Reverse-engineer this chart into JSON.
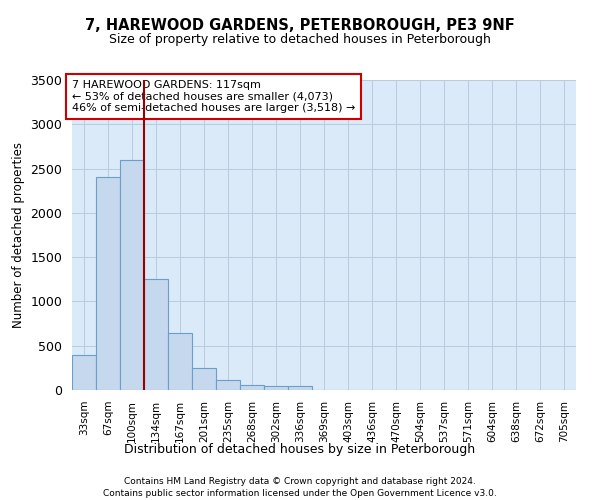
{
  "title": "7, HAREWOOD GARDENS, PETERBOROUGH, PE3 9NF",
  "subtitle": "Size of property relative to detached houses in Peterborough",
  "xlabel": "Distribution of detached houses by size in Peterborough",
  "ylabel": "Number of detached properties",
  "footnote1": "Contains HM Land Registry data © Crown copyright and database right 2024.",
  "footnote2": "Contains public sector information licensed under the Open Government Licence v3.0.",
  "annotation_line1": "7 HAREWOOD GARDENS: 117sqm",
  "annotation_line2": "← 53% of detached houses are smaller (4,073)",
  "annotation_line3": "46% of semi-detached houses are larger (3,518) →",
  "bar_color": "#c5d8ee",
  "bar_edge_color": "#6a9fc8",
  "grid_color": "#b8ccdf",
  "background_color": "#daeaf8",
  "vline_color": "#9b0000",
  "vline_x": 2.5,
  "categories": [
    "33sqm",
    "67sqm",
    "100sqm",
    "134sqm",
    "167sqm",
    "201sqm",
    "235sqm",
    "268sqm",
    "302sqm",
    "336sqm",
    "369sqm",
    "403sqm",
    "436sqm",
    "470sqm",
    "504sqm",
    "537sqm",
    "571sqm",
    "604sqm",
    "638sqm",
    "672sqm",
    "705sqm"
  ],
  "values": [
    390,
    2400,
    2600,
    1250,
    640,
    250,
    110,
    60,
    50,
    40,
    0,
    0,
    0,
    0,
    0,
    0,
    0,
    0,
    0,
    0,
    0
  ],
  "ylim": [
    0,
    3500
  ],
  "yticks": [
    0,
    500,
    1000,
    1500,
    2000,
    2500,
    3000,
    3500
  ]
}
